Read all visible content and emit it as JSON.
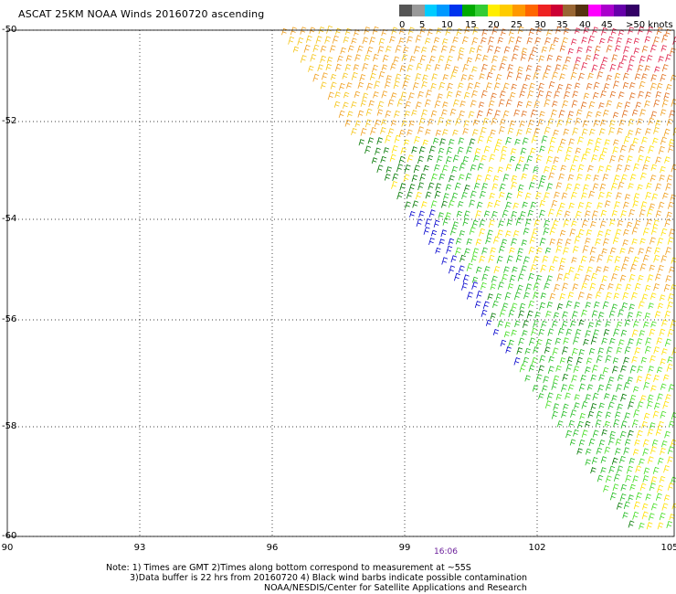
{
  "title": "ASCAT 25KM NOAA Winds 20160720 ascending",
  "scale": {
    "colors": [
      "#555555",
      "#999999",
      "#00ccff",
      "#0099ff",
      "#0033ee",
      "#00aa00",
      "#33cc33",
      "#ffee00",
      "#ffcc00",
      "#ff9900",
      "#ff6600",
      "#ee2222",
      "#cc0033",
      "#996633",
      "#553311",
      "#ff00ff",
      "#aa00cc",
      "#6600aa",
      "#330066"
    ],
    "labels": [
      {
        "text": "0"
      },
      {
        "text": "5"
      },
      {
        "text": "10"
      },
      {
        "text": "15"
      },
      {
        "text": "20"
      },
      {
        "text": "25"
      },
      {
        "text": "30"
      },
      {
        "text": "35"
      },
      {
        "text": "40"
      },
      {
        "text": "45"
      },
      {
        "text": ">50 knots"
      }
    ]
  },
  "map": {
    "lat_labels": [
      "-50",
      "-52",
      "-54",
      "-56",
      "-58",
      "-60"
    ],
    "lon_labels": [
      "90",
      "93",
      "96",
      "99",
      "102",
      "105"
    ],
    "time_label": "16:06",
    "wind_colors": {
      "red": "#e0204a",
      "orange_dark": "#e07020",
      "orange": "#f0a020",
      "yellow_orange": "#f5c518",
      "yellow": "#ffe000",
      "green_dark": "#007700",
      "green": "#22bb22",
      "light_green": "#44dd22",
      "blue": "#0000cc"
    }
  },
  "notes": {
    "line1": "Note: 1) Times are GMT 2)Times along bottom correspond to measurement at ~55S",
    "line2": "3)Data buffer is 22 hrs from 20160720 4) Black wind barbs indicate possible contamination",
    "line3": "NOAA/NESDIS/Center for Satellite Applications and Research"
  }
}
